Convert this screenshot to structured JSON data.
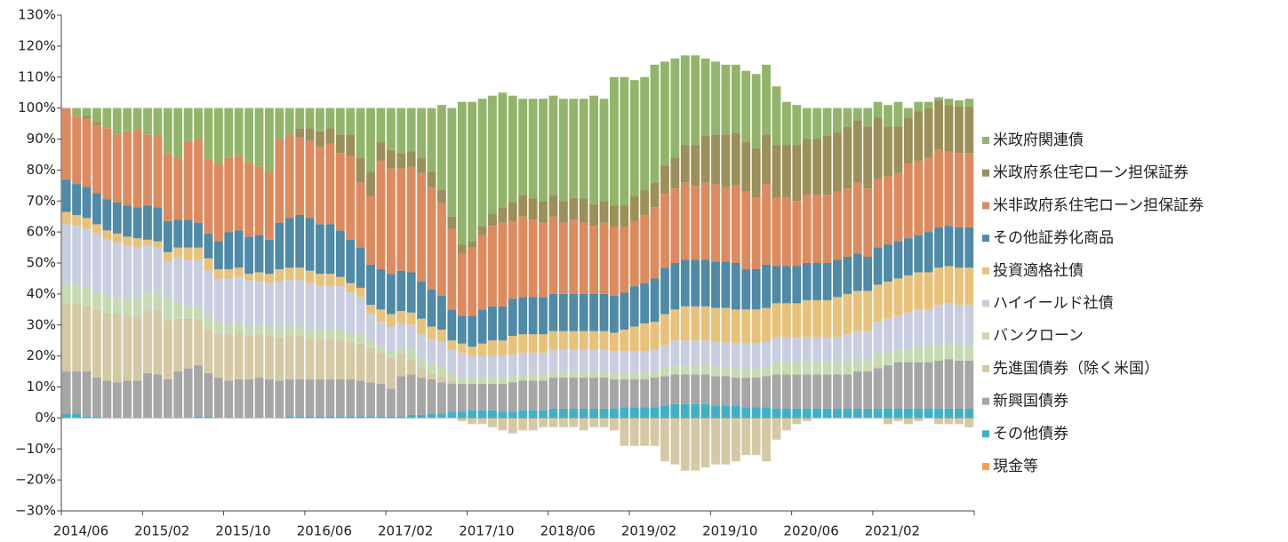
{
  "chart_data": {
    "type": "stacked_bar",
    "categories": [
      "2014/06",
      null,
      null,
      null,
      null,
      null,
      null,
      null,
      "2015/02",
      null,
      null,
      null,
      null,
      null,
      null,
      null,
      "2015/10",
      null,
      null,
      null,
      null,
      null,
      null,
      null,
      "2016/06",
      null,
      null,
      null,
      null,
      null,
      null,
      null,
      "2017/02",
      null,
      null,
      null,
      null,
      null,
      null,
      null,
      "2017/10",
      null,
      null,
      null,
      null,
      null,
      null,
      null,
      "2018/06",
      null,
      null,
      null,
      null,
      null,
      null,
      null,
      "2019/02",
      null,
      null,
      null,
      null,
      null,
      null,
      null,
      "2019/10",
      null,
      null,
      null,
      null,
      null,
      null,
      null,
      "2020/06",
      null,
      null,
      null,
      null,
      null,
      null,
      null,
      "2021/02",
      null,
      null,
      null,
      null,
      null,
      null,
      null,
      null,
      null
    ],
    "ylim": [
      -30,
      130
    ],
    "yticks": [
      {
        "value": -30,
        "label": "−30%"
      },
      {
        "value": -20,
        "label": "−20%"
      },
      {
        "value": -10,
        "label": "−10%"
      },
      {
        "value": 0,
        "label": "0%"
      },
      {
        "value": 10,
        "label": "10%"
      },
      {
        "value": 20,
        "label": "20%"
      },
      {
        "value": 30,
        "label": "30%"
      },
      {
        "value": 40,
        "label": "40%"
      },
      {
        "value": 50,
        "label": "50%"
      },
      {
        "value": 60,
        "label": "60%"
      },
      {
        "value": 70,
        "label": "70%"
      },
      {
        "value": 80,
        "label": "80%"
      },
      {
        "value": 90,
        "label": "90%"
      },
      {
        "value": 100,
        "label": "100%"
      },
      {
        "value": 110,
        "label": "110%"
      },
      {
        "value": 120,
        "label": "120%"
      },
      {
        "value": 130,
        "label": "130%"
      }
    ],
    "series": [
      {
        "name": "米政府関連債",
        "color": "#93b56b",
        "values": [
          0,
          2.5,
          2.5,
          4.5,
          6.5,
          8.5,
          7.5,
          7,
          8.5,
          9,
          14.5,
          16,
          11,
          10,
          16.5,
          18,
          16,
          15.5,
          17.5,
          19,
          20.5,
          10,
          8.5,
          6.5,
          6.5,
          7.5,
          6.5,
          8.5,
          8.5,
          16,
          20.5,
          11,
          13.5,
          14.5,
          14,
          16,
          20.5,
          27.5,
          35,
          46,
          45,
          41,
          38,
          37,
          34.5,
          31,
          32,
          33,
          32,
          33,
          32,
          32,
          35,
          33,
          41.5,
          41.5,
          37.5,
          36.5,
          38,
          33.5,
          32,
          29,
          29,
          25,
          23.5,
          22.5,
          22,
          23,
          24,
          22.5,
          19,
          14,
          13,
          10,
          10,
          9,
          8,
          6,
          4,
          6,
          5,
          7,
          8,
          3,
          3,
          2,
          1,
          2,
          2,
          2.5
        ]
      },
      {
        "name": "米政府系住宅ローン担保証券",
        "color": "#9b8f5a",
        "values": [
          0,
          0,
          1,
          1,
          0,
          0,
          0,
          0,
          0,
          0,
          0,
          0,
          0,
          0,
          0,
          0,
          0,
          0,
          0,
          0,
          0,
          0,
          0,
          3,
          4,
          5,
          5,
          6,
          7,
          8,
          8,
          6,
          6,
          5,
          5,
          5,
          5,
          4,
          4,
          3,
          2,
          3,
          4,
          5,
          6,
          7,
          7,
          7,
          7,
          7,
          7,
          8,
          7,
          7,
          7,
          7,
          8,
          8,
          8,
          9,
          10,
          12,
          13,
          15,
          16,
          17,
          17,
          16,
          16,
          16,
          17,
          17,
          18,
          18,
          18,
          19,
          19,
          20,
          20,
          20,
          20,
          16,
          15,
          15,
          16,
          16,
          16,
          15,
          15,
          15
        ]
      },
      {
        "name": "米非政府系住宅ローン担保証券",
        "color": "#dc8a5e",
        "values": [
          23,
          22,
          22,
          22,
          23,
          22,
          24,
          25,
          23,
          23,
          22,
          20,
          25,
          27,
          24,
          25,
          24,
          24,
          24,
          22,
          22,
          27,
          27,
          25,
          25,
          25,
          26,
          25,
          27,
          21,
          22,
          35,
          34,
          33,
          34,
          35,
          33,
          30,
          26,
          20,
          22,
          24,
          26,
          27,
          25,
          26,
          25,
          24,
          25,
          23,
          24,
          23,
          22,
          23,
          22,
          21,
          21,
          22,
          23,
          24,
          24,
          25,
          24,
          25,
          25,
          24,
          25,
          25,
          23,
          26,
          22,
          22,
          21,
          22,
          22,
          22,
          22,
          22,
          23,
          22,
          22,
          22,
          22,
          24,
          24,
          24,
          25,
          24,
          24,
          24
        ]
      },
      {
        "name": "その他証券化商品",
        "color": "#4f8aa6",
        "values": [
          10.5,
          10,
          10,
          10,
          10,
          10,
          10,
          10,
          11,
          11,
          10,
          9,
          9,
          8,
          8,
          9,
          12,
          12,
          12,
          12,
          11,
          15,
          16,
          17,
          17,
          16,
          16,
          15,
          14,
          13,
          13,
          13,
          13,
          13,
          13,
          12,
          12,
          11,
          10,
          9,
          10,
          11,
          11,
          11,
          12,
          12,
          12,
          12,
          12,
          12,
          12,
          12,
          12,
          12,
          12,
          12,
          13,
          13,
          14,
          15,
          15,
          15,
          15,
          15,
          15,
          15,
          15,
          13,
          13,
          14,
          12,
          12,
          12,
          12,
          12,
          12,
          12,
          12,
          12,
          11,
          12,
          12,
          12,
          12,
          12,
          13,
          13,
          13,
          13,
          13
        ]
      },
      {
        "name": "投資適格社債",
        "color": "#e8c27a",
        "values": [
          4,
          3.5,
          3.5,
          3,
          3,
          3,
          3,
          3,
          2,
          2,
          3,
          3,
          4,
          4,
          4,
          3,
          3,
          3,
          2,
          3,
          3,
          4,
          4,
          4,
          4,
          4,
          4,
          3,
          3,
          3,
          3,
          4,
          4,
          4,
          4,
          5,
          4,
          4,
          3,
          3,
          3,
          4,
          5,
          5,
          6,
          6,
          6,
          6,
          6,
          6,
          6,
          6,
          6,
          6,
          6,
          7,
          8,
          9,
          9,
          10,
          10,
          11,
          11,
          11,
          11,
          11,
          11,
          11,
          11,
          11,
          11,
          11,
          11,
          12,
          12,
          12,
          13,
          13,
          13,
          13,
          12,
          12,
          12,
          12,
          12,
          12,
          12,
          12,
          12,
          12
        ]
      },
      {
        "name": "ハイイールド社債",
        "color": "#c9cde0",
        "values": [
          19.5,
          19.5,
          19,
          19,
          18,
          18,
          17,
          16,
          15,
          14,
          12,
          15,
          15,
          15,
          15,
          14,
          15,
          15,
          15,
          14,
          14,
          15,
          15,
          15,
          15,
          14,
          14,
          14,
          13,
          12,
          9,
          8,
          8,
          8,
          8,
          8,
          8,
          8,
          8,
          8,
          7,
          7,
          7,
          7,
          7,
          7,
          7,
          7,
          7,
          7,
          7,
          7,
          7,
          7,
          7,
          7,
          7,
          7,
          7,
          7,
          8,
          8,
          8,
          8,
          8,
          8,
          8,
          8,
          8,
          8,
          8,
          8,
          8,
          8,
          8,
          8,
          8,
          9,
          9,
          9,
          10,
          11,
          11,
          12,
          12,
          12,
          13,
          13,
          13,
          13
        ]
      },
      {
        "name": "バンクローン",
        "color": "#c6dab3",
        "values": [
          6,
          5.5,
          6,
          5.5,
          5.5,
          5,
          5.5,
          6,
          6,
          6,
          7,
          5,
          4,
          4,
          4,
          4,
          3,
          3,
          3,
          3,
          3,
          3,
          3,
          3,
          3,
          3,
          3,
          3,
          3,
          3,
          2,
          2,
          2,
          2,
          3,
          3,
          3,
          3,
          2,
          2,
          2,
          2,
          2,
          2,
          2,
          2,
          2,
          2,
          2,
          2,
          2,
          2,
          2,
          2,
          2,
          2,
          2,
          2,
          2,
          3,
          3,
          3,
          3,
          3,
          3,
          3,
          3,
          3,
          3,
          3,
          4,
          4,
          4,
          4,
          4,
          4,
          4,
          4,
          4,
          4,
          4,
          4,
          4,
          4,
          5,
          5,
          5,
          5,
          5,
          5
        ]
      },
      {
        "name": "先進国債券（除く米国）",
        "color": "#d4c9a4",
        "values": [
          22,
          22,
          21,
          22,
          22,
          22,
          21,
          21,
          20,
          21,
          19,
          17,
          16,
          15,
          14,
          14,
          15,
          15,
          14,
          14,
          14,
          14,
          14,
          14,
          13,
          13,
          13,
          13,
          12,
          12,
          11,
          10,
          10,
          7,
          5,
          3,
          2,
          2,
          1,
          -1,
          -2,
          -2,
          -3,
          -4,
          -5,
          -4,
          -4,
          -3,
          -3,
          -3,
          -3,
          -4,
          -3,
          -3,
          -4,
          -9,
          -9,
          -9,
          -9,
          -14,
          -15,
          -17,
          -17,
          -16,
          -15,
          -15,
          -14,
          -12,
          -12,
          -14,
          -7,
          -4,
          -2,
          -1,
          0,
          0,
          0,
          0,
          0,
          0,
          1,
          -2,
          -1,
          -2,
          -1,
          0,
          -2,
          -2,
          -2,
          -3
        ]
      },
      {
        "name": "新興国債券",
        "color": "#a6a6a6",
        "values": [
          13.5,
          13.5,
          14.5,
          12.5,
          12,
          11.5,
          12,
          12,
          14.5,
          14,
          12.5,
          15,
          16,
          16.5,
          14,
          13,
          12,
          12.5,
          12.5,
          13,
          12.5,
          12,
          12,
          12,
          12,
          12,
          12,
          12,
          12,
          11.5,
          11,
          10.5,
          9,
          13,
          13,
          12,
          11,
          10,
          9,
          9,
          8.5,
          8.5,
          8.5,
          9,
          9.5,
          9.5,
          9.5,
          9.5,
          10,
          10,
          10,
          10,
          10,
          10,
          9.5,
          9,
          9,
          9,
          9.5,
          9.5,
          9.5,
          9.5,
          9.5,
          9.5,
          9.5,
          9.5,
          9,
          9.5,
          9.5,
          10,
          11,
          11,
          11,
          11,
          11,
          11,
          11,
          11,
          12,
          12,
          13,
          14,
          15,
          15,
          15,
          15,
          15.5,
          16,
          15.5,
          15.5
        ]
      },
      {
        "name": "その他債券",
        "color": "#40b0c8",
        "values": [
          1.5,
          1.5,
          0.5,
          0.5,
          0,
          0,
          0,
          0,
          0,
          0,
          0,
          0,
          0,
          0.5,
          0.5,
          0,
          0,
          0,
          0,
          0,
          0,
          0,
          0.5,
          0.5,
          0.5,
          0.5,
          0.5,
          0.5,
          0.5,
          0.5,
          0.5,
          0.5,
          0.5,
          0.5,
          1,
          1,
          1.5,
          1.5,
          2,
          2,
          2.5,
          2.5,
          2.5,
          2,
          2,
          2.5,
          2.5,
          2.5,
          3,
          3,
          3,
          3,
          3,
          3,
          3,
          3.5,
          3.5,
          3.5,
          3.5,
          4,
          4.5,
          4.5,
          4.5,
          4.5,
          4,
          4,
          4,
          3.5,
          3.5,
          3.5,
          3,
          3,
          3,
          3,
          3,
          3,
          3,
          3,
          3,
          3,
          3,
          3,
          3,
          3,
          3,
          3,
          3,
          3,
          3,
          3
        ]
      },
      {
        "name": "現金等",
        "color": "#f4a05a",
        "values": [
          0,
          0,
          0,
          0,
          0,
          0,
          0,
          0,
          0,
          0,
          0,
          0,
          0,
          0,
          0,
          0,
          0,
          0,
          0,
          0,
          0,
          0,
          0,
          0,
          0,
          0,
          0,
          0,
          0,
          0,
          0,
          0,
          0,
          0,
          0,
          0,
          0,
          0,
          0,
          0,
          0,
          0,
          0,
          0,
          0,
          0,
          0,
          0,
          0,
          0,
          0,
          0,
          0,
          0,
          0,
          0,
          0,
          0,
          0,
          0,
          0,
          0,
          0,
          0,
          0,
          0,
          0,
          0,
          0,
          0,
          0,
          0,
          0,
          0,
          0,
          0,
          0,
          0,
          0,
          0,
          0,
          0,
          0,
          0,
          0,
          0,
          0,
          0,
          0,
          0
        ]
      }
    ]
  }
}
